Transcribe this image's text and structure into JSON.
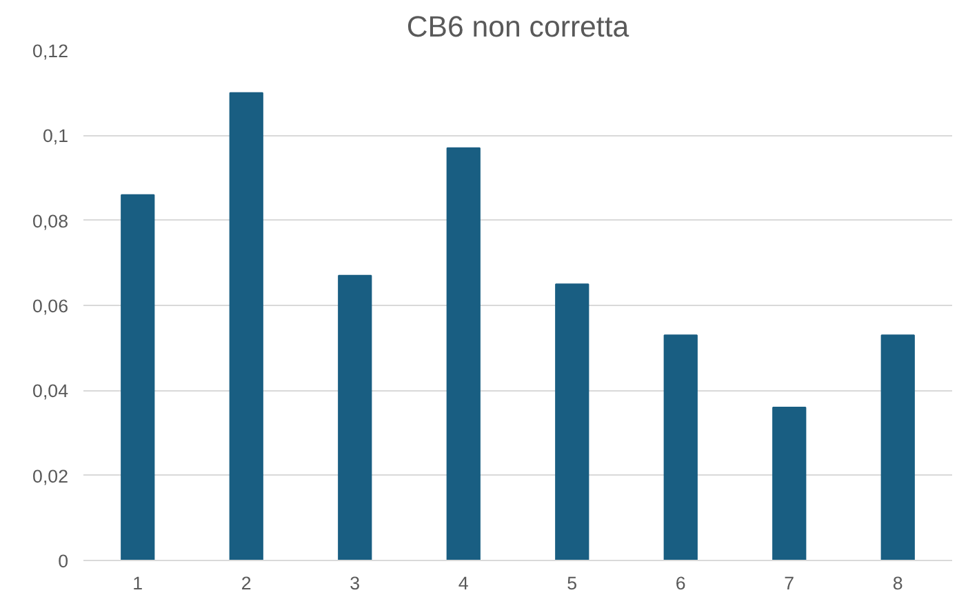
{
  "chart_data": {
    "type": "bar",
    "title": "CB6 non corretta",
    "categories": [
      "1",
      "2",
      "3",
      "4",
      "5",
      "6",
      "7",
      "8"
    ],
    "values": [
      0.086,
      0.11,
      0.067,
      0.097,
      0.065,
      0.053,
      0.036,
      0.053
    ],
    "color": "#195e82",
    "ylim": [
      0,
      0.12
    ],
    "yticks": [
      {
        "value": 0,
        "label": "0"
      },
      {
        "value": 0.02,
        "label": "0,02"
      },
      {
        "value": 0.04,
        "label": "0,04"
      },
      {
        "value": 0.06,
        "label": "0,06"
      },
      {
        "value": 0.08,
        "label": "0,08"
      },
      {
        "value": 0.1,
        "label": "0,1"
      },
      {
        "value": 0.12,
        "label": "0,12"
      }
    ],
    "grid": "y"
  }
}
